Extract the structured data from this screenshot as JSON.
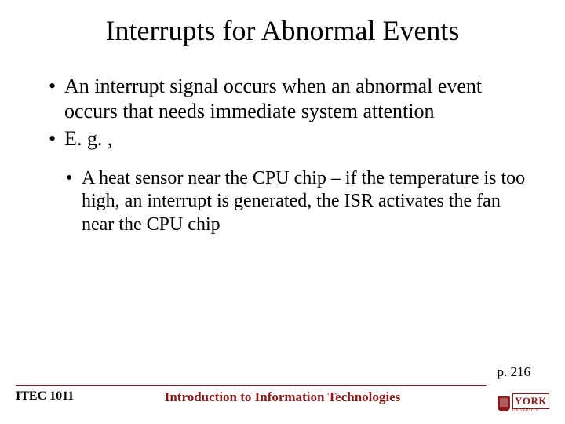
{
  "title": "Interrupts for Abnormal Events",
  "bullets": [
    "An interrupt signal occurs when an abnormal event occurs that needs immediate system attention",
    "E. g. ,"
  ],
  "sub_bullets": [
    "A heat sensor near the CPU chip – if the temperature is too high, an interrupt is generated, the ISR activates the fan near the CPU chip"
  ],
  "page_ref": "p. 216",
  "footer": {
    "course_code": "ITEC 1011",
    "course_title": "Introduction to Information Technologies",
    "logo_main": "YORK",
    "logo_sub": "UNIVERSITY"
  },
  "colors": {
    "accent": "#8a1a1a",
    "text": "#000000",
    "background": "#ffffff"
  }
}
